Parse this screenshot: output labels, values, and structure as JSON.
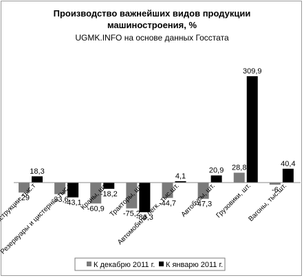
{
  "chart_data": {
    "type": "bar",
    "title_line1": "Производство важнейших видов продукции",
    "title_line2": "машиностроения, %",
    "subtitle": "UGMK.INFO на основе данных Госстата",
    "categories": [
      "Конструкции, тыс.т",
      "Резервуары и цистерны, тыс.т",
      "Краны, шт.",
      "Тракторы, шт.",
      "Автомобили легк., тыс.шт.",
      "Автобусы, шт.",
      "Грузовики, шт.",
      "Вагоны, тыс.шт."
    ],
    "series": [
      {
        "name": "К декабрю 2011 г.",
        "color": "#7a7a7a",
        "values": [
          -29,
          -33.6,
          -60.9,
          -75.2,
          -44.7,
          -47.3,
          28.8,
          -6
        ],
        "labels": [
          "-29",
          "-33,6",
          "-60,9",
          "-75,2",
          "-44,7",
          "-47,3",
          "28,8",
          "-6"
        ]
      },
      {
        "name": "К январю 2011 г.",
        "color": "#000000",
        "values": [
          18.3,
          -43.1,
          -18.2,
          -86.3,
          4.1,
          20.9,
          309.9,
          40.4
        ],
        "labels": [
          "18,3",
          "-43,1",
          "-18,2",
          "-86,3",
          "4,1",
          "20,9",
          "309,9",
          "40,4"
        ]
      }
    ],
    "legend_position": "bottom",
    "grid": false
  }
}
